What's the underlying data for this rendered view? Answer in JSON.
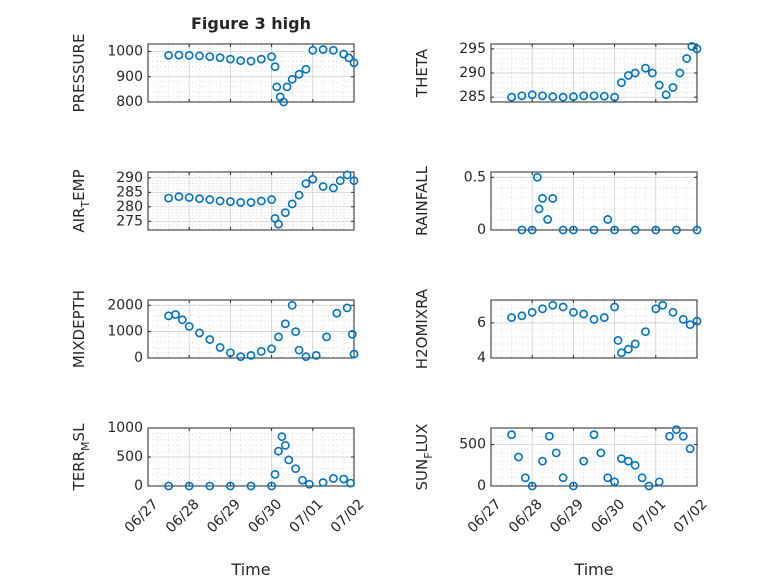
{
  "figure": {
    "title": "Figure 3 high",
    "marker_color": "#0072BD",
    "xlabel": "Time"
  },
  "chart_data": [
    {
      "type": "scatter",
      "ylabel": "PRESSURE",
      "xlim": [
        "06/27 00:00",
        "07/02 00:00"
      ],
      "ylim": [
        800,
        1030
      ],
      "yticks": [
        800,
        900,
        1000
      ],
      "xticks": [
        "06/27",
        "06/28",
        "06/29",
        "06/30",
        "07/01",
        "07/02"
      ],
      "show_xtick_labels": false,
      "grid": true,
      "points": [
        {
          "x": "06/27 12:00",
          "y": 985
        },
        {
          "x": "06/27 18:00",
          "y": 986
        },
        {
          "x": "06/28 00:00",
          "y": 985
        },
        {
          "x": "06/28 06:00",
          "y": 983
        },
        {
          "x": "06/28 12:00",
          "y": 980
        },
        {
          "x": "06/28 18:00",
          "y": 976
        },
        {
          "x": "06/29 00:00",
          "y": 970
        },
        {
          "x": "06/29 06:00",
          "y": 964
        },
        {
          "x": "06/29 12:00",
          "y": 962
        },
        {
          "x": "06/29 18:00",
          "y": 970
        },
        {
          "x": "06/30 00:00",
          "y": 980
        },
        {
          "x": "06/30 02:00",
          "y": 940
        },
        {
          "x": "06/30 03:00",
          "y": 860
        },
        {
          "x": "06/30 05:00",
          "y": 820
        },
        {
          "x": "06/30 07:00",
          "y": 800
        },
        {
          "x": "06/30 09:00",
          "y": 860
        },
        {
          "x": "06/30 12:00",
          "y": 890
        },
        {
          "x": "06/30 16:00",
          "y": 910
        },
        {
          "x": "06/30 20:00",
          "y": 930
        },
        {
          "x": "07/01 00:00",
          "y": 1005
        },
        {
          "x": "07/01 06:00",
          "y": 1008
        },
        {
          "x": "07/01 12:00",
          "y": 1005
        },
        {
          "x": "07/01 18:00",
          "y": 990
        },
        {
          "x": "07/01 21:00",
          "y": 975
        },
        {
          "x": "07/02 00:00",
          "y": 955
        }
      ]
    },
    {
      "type": "scatter",
      "ylabel": "THETA",
      "xlim": [
        "06/27 00:00",
        "07/02 00:00"
      ],
      "ylim": [
        284,
        296
      ],
      "yticks": [
        285,
        290,
        295
      ],
      "xticks": [
        "06/27",
        "06/28",
        "06/29",
        "06/30",
        "07/01",
        "07/02"
      ],
      "show_xtick_labels": false,
      "grid": true,
      "points": [
        {
          "x": "06/27 12:00",
          "y": 285.0
        },
        {
          "x": "06/27 18:00",
          "y": 285.3
        },
        {
          "x": "06/28 00:00",
          "y": 285.5
        },
        {
          "x": "06/28 06:00",
          "y": 285.3
        },
        {
          "x": "06/28 12:00",
          "y": 285.1
        },
        {
          "x": "06/28 18:00",
          "y": 285.0
        },
        {
          "x": "06/29 00:00",
          "y": 285.1
        },
        {
          "x": "06/29 06:00",
          "y": 285.3
        },
        {
          "x": "06/29 12:00",
          "y": 285.3
        },
        {
          "x": "06/29 18:00",
          "y": 285.2
        },
        {
          "x": "06/30 00:00",
          "y": 285.0
        },
        {
          "x": "06/30 04:00",
          "y": 288.0
        },
        {
          "x": "06/30 08:00",
          "y": 289.5
        },
        {
          "x": "06/30 12:00",
          "y": 290.0
        },
        {
          "x": "06/30 18:00",
          "y": 291.0
        },
        {
          "x": "06/30 22:00",
          "y": 290.0
        },
        {
          "x": "07/01 02:00",
          "y": 287.5
        },
        {
          "x": "07/01 06:00",
          "y": 285.5
        },
        {
          "x": "07/01 10:00",
          "y": 287.0
        },
        {
          "x": "07/01 14:00",
          "y": 290.0
        },
        {
          "x": "07/01 18:00",
          "y": 293.0
        },
        {
          "x": "07/01 21:00",
          "y": 295.5
        },
        {
          "x": "07/02 00:00",
          "y": 295.0
        }
      ]
    },
    {
      "type": "scatter",
      "ylabel": "AIR_TEMP",
      "ylabel_parts": {
        "main": "AIR",
        "sub": "T",
        "rest": "EMP"
      },
      "xlim": [
        "06/27 00:00",
        "07/02 00:00"
      ],
      "ylim": [
        272,
        292
      ],
      "yticks": [
        275,
        280,
        285,
        290
      ],
      "xticks": [
        "06/27",
        "06/28",
        "06/29",
        "06/30",
        "07/01",
        "07/02"
      ],
      "show_xtick_labels": false,
      "grid": true,
      "points": [
        {
          "x": "06/27 12:00",
          "y": 283.0
        },
        {
          "x": "06/27 18:00",
          "y": 283.5
        },
        {
          "x": "06/28 00:00",
          "y": 283.2
        },
        {
          "x": "06/28 06:00",
          "y": 282.8
        },
        {
          "x": "06/28 12:00",
          "y": 282.5
        },
        {
          "x": "06/28 18:00",
          "y": 282.0
        },
        {
          "x": "06/29 00:00",
          "y": 281.8
        },
        {
          "x": "06/29 06:00",
          "y": 281.5
        },
        {
          "x": "06/29 12:00",
          "y": 281.5
        },
        {
          "x": "06/29 18:00",
          "y": 282.0
        },
        {
          "x": "06/30 00:00",
          "y": 282.5
        },
        {
          "x": "06/30 02:00",
          "y": 276.0
        },
        {
          "x": "06/30 04:00",
          "y": 274.0
        },
        {
          "x": "06/30 08:00",
          "y": 278.0
        },
        {
          "x": "06/30 12:00",
          "y": 281.0
        },
        {
          "x": "06/30 16:00",
          "y": 284.0
        },
        {
          "x": "06/30 20:00",
          "y": 288.0
        },
        {
          "x": "07/01 00:00",
          "y": 289.5
        },
        {
          "x": "07/01 06:00",
          "y": 287.0
        },
        {
          "x": "07/01 12:00",
          "y": 286.5
        },
        {
          "x": "07/01 16:00",
          "y": 289.0
        },
        {
          "x": "07/01 20:00",
          "y": 291.0
        },
        {
          "x": "07/02 00:00",
          "y": 289.0
        }
      ]
    },
    {
      "type": "scatter",
      "ylabel": "RAINFALL",
      "xlim": [
        "06/27 00:00",
        "07/02 00:00"
      ],
      "ylim": [
        0,
        0.55
      ],
      "yticks": [
        0,
        0.5
      ],
      "xticks": [
        "06/27",
        "06/28",
        "06/29",
        "06/30",
        "07/01",
        "07/02"
      ],
      "show_xtick_labels": false,
      "grid": true,
      "points": [
        {
          "x": "06/27 18:00",
          "y": 0
        },
        {
          "x": "06/28 00:00",
          "y": 0
        },
        {
          "x": "06/28 03:00",
          "y": 0.5
        },
        {
          "x": "06/28 04:00",
          "y": 0.2
        },
        {
          "x": "06/28 06:00",
          "y": 0.3
        },
        {
          "x": "06/28 09:00",
          "y": 0.1
        },
        {
          "x": "06/28 12:00",
          "y": 0.3
        },
        {
          "x": "06/28 18:00",
          "y": 0
        },
        {
          "x": "06/29 00:00",
          "y": 0
        },
        {
          "x": "06/29 12:00",
          "y": 0
        },
        {
          "x": "06/29 20:00",
          "y": 0.1
        },
        {
          "x": "06/30 00:00",
          "y": 0
        },
        {
          "x": "06/30 12:00",
          "y": 0
        },
        {
          "x": "07/01 00:00",
          "y": 0
        },
        {
          "x": "07/01 12:00",
          "y": 0
        },
        {
          "x": "07/02 00:00",
          "y": 0
        }
      ]
    },
    {
      "type": "scatter",
      "ylabel": "MIXDEPTH",
      "xlim": [
        "06/27 00:00",
        "07/02 00:00"
      ],
      "ylim": [
        0,
        2200
      ],
      "yticks": [
        0,
        1000,
        2000
      ],
      "xticks": [
        "06/27",
        "06/28",
        "06/29",
        "06/30",
        "07/01",
        "07/02"
      ],
      "show_xtick_labels": false,
      "grid": true,
      "points": [
        {
          "x": "06/27 12:00",
          "y": 1600
        },
        {
          "x": "06/27 16:00",
          "y": 1650
        },
        {
          "x": "06/27 20:00",
          "y": 1450
        },
        {
          "x": "06/28 00:00",
          "y": 1200
        },
        {
          "x": "06/28 06:00",
          "y": 950
        },
        {
          "x": "06/28 12:00",
          "y": 700
        },
        {
          "x": "06/28 18:00",
          "y": 400
        },
        {
          "x": "06/29 00:00",
          "y": 200
        },
        {
          "x": "06/29 06:00",
          "y": 50
        },
        {
          "x": "06/29 12:00",
          "y": 100
        },
        {
          "x": "06/29 18:00",
          "y": 250
        },
        {
          "x": "06/30 00:00",
          "y": 350
        },
        {
          "x": "06/30 04:00",
          "y": 800
        },
        {
          "x": "06/30 08:00",
          "y": 1300
        },
        {
          "x": "06/30 12:00",
          "y": 2000
        },
        {
          "x": "06/30 14:00",
          "y": 1000
        },
        {
          "x": "06/30 16:00",
          "y": 300
        },
        {
          "x": "06/30 20:00",
          "y": 50
        },
        {
          "x": "07/01 02:00",
          "y": 100
        },
        {
          "x": "07/01 08:00",
          "y": 800
        },
        {
          "x": "07/01 14:00",
          "y": 1700
        },
        {
          "x": "07/01 20:00",
          "y": 1900
        },
        {
          "x": "07/01 23:00",
          "y": 900
        },
        {
          "x": "07/02 00:00",
          "y": 150
        }
      ]
    },
    {
      "type": "scatter",
      "ylabel": "H2OMIXRA",
      "xlim": [
        "06/27 00:00",
        "07/02 00:00"
      ],
      "ylim": [
        4,
        7.3
      ],
      "yticks": [
        4,
        6
      ],
      "xticks": [
        "06/27",
        "06/28",
        "06/29",
        "06/30",
        "07/01",
        "07/02"
      ],
      "show_xtick_labels": false,
      "grid": true,
      "points": [
        {
          "x": "06/27 12:00",
          "y": 6.3
        },
        {
          "x": "06/27 18:00",
          "y": 6.4
        },
        {
          "x": "06/28 00:00",
          "y": 6.6
        },
        {
          "x": "06/28 06:00",
          "y": 6.8
        },
        {
          "x": "06/28 12:00",
          "y": 7.0
        },
        {
          "x": "06/28 18:00",
          "y": 6.9
        },
        {
          "x": "06/29 00:00",
          "y": 6.6
        },
        {
          "x": "06/29 06:00",
          "y": 6.5
        },
        {
          "x": "06/29 12:00",
          "y": 6.2
        },
        {
          "x": "06/29 18:00",
          "y": 6.3
        },
        {
          "x": "06/30 00:00",
          "y": 6.9
        },
        {
          "x": "06/30 02:00",
          "y": 5.0
        },
        {
          "x": "06/30 04:00",
          "y": 4.3
        },
        {
          "x": "06/30 08:00",
          "y": 4.5
        },
        {
          "x": "06/30 12:00",
          "y": 4.8
        },
        {
          "x": "06/30 18:00",
          "y": 5.5
        },
        {
          "x": "07/01 00:00",
          "y": 6.8
        },
        {
          "x": "07/01 04:00",
          "y": 7.0
        },
        {
          "x": "07/01 10:00",
          "y": 6.6
        },
        {
          "x": "07/01 16:00",
          "y": 6.2
        },
        {
          "x": "07/01 20:00",
          "y": 5.9
        },
        {
          "x": "07/02 00:00",
          "y": 6.1
        }
      ]
    },
    {
      "type": "scatter",
      "ylabel": "TERR_MSL",
      "ylabel_parts": {
        "main": "TERR",
        "sub": "M",
        "rest": "SL"
      },
      "xlim": [
        "06/27 00:00",
        "07/02 00:00"
      ],
      "ylim": [
        0,
        1000
      ],
      "yticks": [
        0,
        500,
        1000
      ],
      "xticks": [
        "06/27",
        "06/28",
        "06/29",
        "06/30",
        "07/01",
        "07/02"
      ],
      "show_xtick_labels": true,
      "grid": true,
      "points": [
        {
          "x": "06/27 12:00",
          "y": 0
        },
        {
          "x": "06/28 00:00",
          "y": 0
        },
        {
          "x": "06/28 12:00",
          "y": 0
        },
        {
          "x": "06/29 00:00",
          "y": 0
        },
        {
          "x": "06/29 12:00",
          "y": 0
        },
        {
          "x": "06/30 00:00",
          "y": 0
        },
        {
          "x": "06/30 02:00",
          "y": 200
        },
        {
          "x": "06/30 04:00",
          "y": 600
        },
        {
          "x": "06/30 06:00",
          "y": 850
        },
        {
          "x": "06/30 08:00",
          "y": 700
        },
        {
          "x": "06/30 10:00",
          "y": 450
        },
        {
          "x": "06/30 14:00",
          "y": 300
        },
        {
          "x": "06/30 18:00",
          "y": 100
        },
        {
          "x": "06/30 22:00",
          "y": 30
        },
        {
          "x": "07/01 06:00",
          "y": 60
        },
        {
          "x": "07/01 12:00",
          "y": 130
        },
        {
          "x": "07/01 18:00",
          "y": 120
        },
        {
          "x": "07/01 22:00",
          "y": 50
        }
      ]
    },
    {
      "type": "scatter",
      "ylabel": "SUN_FLUX",
      "ylabel_parts": {
        "main": "SUN",
        "sub": "F",
        "rest": "LUX"
      },
      "xlim": [
        "06/27 00:00",
        "07/02 00:00"
      ],
      "ylim": [
        0,
        700
      ],
      "yticks": [
        0,
        500
      ],
      "xticks": [
        "06/27",
        "06/28",
        "06/29",
        "06/30",
        "07/01",
        "07/02"
      ],
      "show_xtick_labels": true,
      "grid": true,
      "points": [
        {
          "x": "06/27 12:00",
          "y": 620
        },
        {
          "x": "06/27 16:00",
          "y": 350
        },
        {
          "x": "06/27 20:00",
          "y": 100
        },
        {
          "x": "06/28 00:00",
          "y": 0
        },
        {
          "x": "06/28 06:00",
          "y": 300
        },
        {
          "x": "06/28 10:00",
          "y": 600
        },
        {
          "x": "06/28 14:00",
          "y": 400
        },
        {
          "x": "06/28 18:00",
          "y": 100
        },
        {
          "x": "06/29 00:00",
          "y": 0
        },
        {
          "x": "06/29 06:00",
          "y": 300
        },
        {
          "x": "06/29 12:00",
          "y": 620
        },
        {
          "x": "06/29 16:00",
          "y": 400
        },
        {
          "x": "06/29 20:00",
          "y": 100
        },
        {
          "x": "06/30 00:00",
          "y": 50
        },
        {
          "x": "06/30 04:00",
          "y": 330
        },
        {
          "x": "06/30 08:00",
          "y": 300
        },
        {
          "x": "06/30 12:00",
          "y": 250
        },
        {
          "x": "06/30 16:00",
          "y": 100
        },
        {
          "x": "06/30 20:00",
          "y": 0
        },
        {
          "x": "07/01 02:00",
          "y": 50
        },
        {
          "x": "07/01 08:00",
          "y": 600
        },
        {
          "x": "07/01 12:00",
          "y": 680
        },
        {
          "x": "07/01 16:00",
          "y": 600
        },
        {
          "x": "07/01 20:00",
          "y": 450
        }
      ]
    }
  ]
}
